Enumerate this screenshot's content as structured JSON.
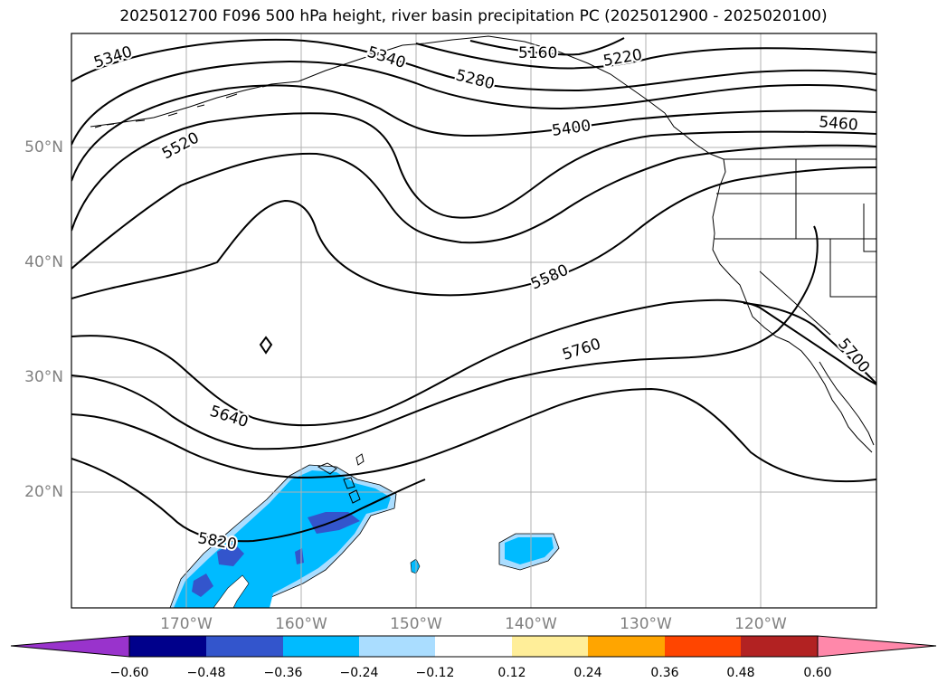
{
  "title": "2025012700 F096 500 hPa height, river basin precipitation PC (2025012900 - 2025020100)",
  "lat_labels": [
    "50°N",
    "40°N",
    "30°N",
    "20°N"
  ],
  "lon_labels": [
    "170°W",
    "160°W",
    "150°W",
    "140°W",
    "130°W",
    "120°W"
  ],
  "contour_labels": [
    "5340",
    "5340",
    "5160",
    "5220",
    "5280",
    "5400",
    "5460",
    "5520",
    "5580",
    "5640",
    "5760",
    "5700",
    "5820"
  ],
  "colorbar": {
    "ticks": [
      "−0.60",
      "−0.48",
      "−0.36",
      "−0.24",
      "−0.12",
      "0.12",
      "0.24",
      "0.36",
      "0.48",
      "0.60"
    ],
    "colors": [
      "#9933cc",
      "#00008b",
      "#3355cc",
      "#00bbff",
      "#aaddff",
      "#ffffff",
      "#ffee99",
      "#ffa500",
      "#ff4500",
      "#b22222",
      "#ff88aa"
    ]
  },
  "colors": {
    "contour": "#000000",
    "grid": "#b0b0b0",
    "coast": "#000000",
    "shade_light": "#aaddff",
    "shade_mid": "#00bbff",
    "shade_dark": "#3355cc"
  }
}
